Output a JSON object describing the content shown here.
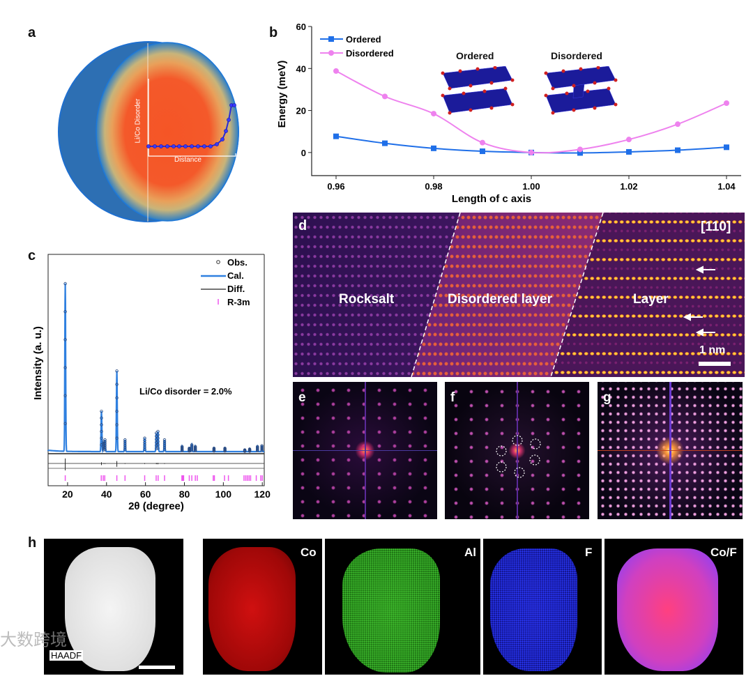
{
  "panels": {
    "a": "a",
    "b": "b",
    "c": "c",
    "d": "d",
    "e": "e",
    "f": "f",
    "g": "g",
    "h": "h"
  },
  "panel_a": {
    "ylabel": "Li/Co Disorder",
    "xlabel": "Distance"
  },
  "panel_b_insets": {
    "ordered": "Ordered",
    "disordered": "Disordered"
  },
  "panel_c_annotation": "Li/Co disorder = 2.0%",
  "panel_d": {
    "zone_axis": "[110]",
    "regions": [
      "Rocksalt",
      "Disordered layer",
      "Layer"
    ],
    "scale_bar": "1 nm"
  },
  "panel_h": {
    "maps": [
      "HAADF",
      "Co",
      "Al",
      "F",
      "Co/F"
    ]
  },
  "watermark": "大数跨境",
  "colors": {
    "ordered": "#1f6fe8",
    "disordered": "#ee82ee",
    "obs": "#333333",
    "cal": "#2f80e0",
    "diff": "#222222",
    "r3m": "#ee55ee"
  },
  "chart_data": [
    {
      "type": "line",
      "title": "",
      "xlabel": "Length of c axis",
      "ylabel": "Energy (meV)",
      "xlim": [
        0.955,
        1.043
      ],
      "ylim": [
        -11,
        60
      ],
      "xticks": [
        "0.96",
        "0.98",
        "1.00",
        "1.02",
        "1.04"
      ],
      "yticks": [
        "0",
        "20",
        "40",
        "60"
      ],
      "legend": "top-left",
      "x": [
        0.96,
        0.97,
        0.98,
        0.99,
        1.0,
        1.01,
        1.02,
        1.03,
        1.04
      ],
      "series": [
        {
          "name": "Ordered",
          "marker": "square",
          "values": [
            7.7,
            4.4,
            2.0,
            0.6,
            0,
            -0.2,
            0.3,
            1.1,
            2.5
          ]
        },
        {
          "name": "Disordered",
          "marker": "circle",
          "values": [
            38.8,
            26.7,
            18.5,
            4.7,
            0,
            1.5,
            6.2,
            13.5,
            23.5
          ]
        }
      ]
    },
    {
      "type": "line",
      "title": "",
      "xlabel": "2θ (degree)",
      "ylabel": "Intensity (a. u.)",
      "xlim": [
        10,
        121
      ],
      "xticks": [
        "20",
        "40",
        "60",
        "80",
        "100",
        "120"
      ],
      "legend": "top-right",
      "legend_entries": [
        "Obs.",
        "Cal.",
        "Diff.",
        "R-3m"
      ],
      "peaks": [
        [
          18.8,
          100
        ],
        [
          37.4,
          24
        ],
        [
          38.5,
          6
        ],
        [
          39.2,
          7
        ],
        [
          45.3,
          48
        ],
        [
          49.5,
          7
        ],
        [
          59.6,
          8
        ],
        [
          65.6,
          11
        ],
        [
          66.4,
          12
        ],
        [
          69.8,
          7
        ],
        [
          78.8,
          3
        ],
        [
          82.5,
          2
        ],
        [
          83.8,
          4
        ],
        [
          85.6,
          3
        ],
        [
          95.2,
          2
        ],
        [
          100.8,
          2
        ],
        [
          111,
          1
        ],
        [
          113.5,
          1.5
        ],
        [
          117.5,
          3
        ],
        [
          119.8,
          3.5
        ]
      ],
      "reflections": [
        18.8,
        37.3,
        38.3,
        39.1,
        45.3,
        49.5,
        59.6,
        65.5,
        66.5,
        69.8,
        78.7,
        79.2,
        79.6,
        82.5,
        83.8,
        85.6,
        86.6,
        94.8,
        95.4,
        100.6,
        102.6,
        110.6,
        111.5,
        112.3,
        113.2,
        114.0,
        116.9,
        119.2,
        120
      ]
    }
  ]
}
